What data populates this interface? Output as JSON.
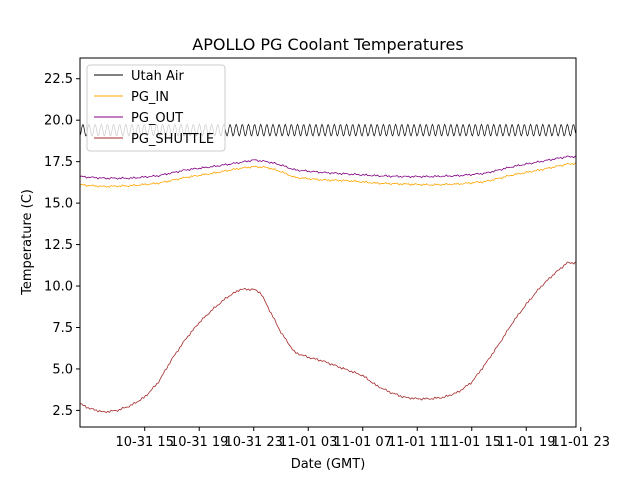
{
  "chart_data": {
    "type": "line",
    "title": "APOLLO PG Coolant Temperatures",
    "xlabel": "Date (GMT)",
    "ylabel": "Temperature (C)",
    "xlim": [
      10.25,
      46.65
    ],
    "ylim": [
      1.5,
      23.75
    ],
    "x_unit": "hours since 2023-10-31 00:00 GMT",
    "xticks": [
      {
        "value": 15,
        "label": "10-31 15"
      },
      {
        "value": 19,
        "label": "10-31 19"
      },
      {
        "value": 23,
        "label": "10-31 23"
      },
      {
        "value": 27,
        "label": "11-01 03"
      },
      {
        "value": 31,
        "label": "11-01 07"
      },
      {
        "value": 35,
        "label": "11-01 11"
      },
      {
        "value": 39,
        "label": "11-01 15"
      },
      {
        "value": 43,
        "label": "11-01 19"
      },
      {
        "value": 47,
        "label": "11-01 23"
      }
    ],
    "yticks": [
      {
        "value": 2.5,
        "label": "2.5"
      },
      {
        "value": 5.0,
        "label": "5.0"
      },
      {
        "value": 7.5,
        "label": "7.5"
      },
      {
        "value": 10.0,
        "label": "10.0"
      },
      {
        "value": 12.5,
        "label": "12.5"
      },
      {
        "value": 15.0,
        "label": "15.0"
      },
      {
        "value": 17.5,
        "label": "17.5"
      },
      {
        "value": 20.0,
        "label": "20.0"
      },
      {
        "value": 22.5,
        "label": "22.5"
      }
    ],
    "grid": false,
    "legend_position": "top-left",
    "series": [
      {
        "name": "Utah Air",
        "color": "#000000",
        "x": [
          10.25,
          12,
          14,
          16,
          18,
          20,
          22,
          24,
          26,
          28,
          30,
          32,
          34,
          36,
          38,
          40,
          42,
          44,
          46,
          46.65
        ],
        "y": [
          19.4,
          19.4,
          19.4,
          19.4,
          19.4,
          19.4,
          19.4,
          19.4,
          19.4,
          19.4,
          19.4,
          19.4,
          19.4,
          19.4,
          19.4,
          19.4,
          19.4,
          19.4,
          19.4,
          19.4
        ],
        "oscillation_amplitude": 0.35
      },
      {
        "name": "PG_IN",
        "color": "#ffa500",
        "x": [
          10.25,
          12,
          14,
          16,
          18,
          20,
          22,
          23,
          24,
          25,
          26,
          28,
          30,
          32,
          34,
          36,
          38,
          40,
          42,
          44,
          46,
          46.65
        ],
        "y": [
          16.1,
          16.0,
          16.05,
          16.2,
          16.55,
          16.8,
          17.1,
          17.2,
          17.15,
          16.9,
          16.55,
          16.4,
          16.35,
          16.2,
          16.15,
          16.1,
          16.15,
          16.3,
          16.7,
          17.0,
          17.35,
          17.4
        ]
      },
      {
        "name": "PG_OUT",
        "color": "#800080",
        "x": [
          10.25,
          12,
          14,
          16,
          18,
          20,
          22,
          23,
          24,
          25,
          26,
          28,
          30,
          32,
          34,
          36,
          38,
          40,
          42,
          44,
          46,
          46.65
        ],
        "y": [
          16.6,
          16.5,
          16.5,
          16.65,
          17.0,
          17.2,
          17.45,
          17.6,
          17.5,
          17.3,
          17.0,
          16.85,
          16.75,
          16.65,
          16.6,
          16.6,
          16.65,
          16.8,
          17.2,
          17.5,
          17.8,
          17.8
        ]
      },
      {
        "name": "PG_SHUTTLE",
        "color": "#a52a2a",
        "x": [
          10.25,
          11,
          12,
          13,
          14,
          15,
          16,
          17,
          18,
          19,
          20,
          21,
          22,
          23,
          23.5,
          24,
          25,
          26,
          27,
          28,
          29,
          30,
          31,
          32,
          33,
          34,
          35,
          36,
          37,
          38,
          39,
          40,
          41,
          42,
          43,
          44,
          45,
          46,
          46.65
        ],
        "y": [
          2.9,
          2.6,
          2.4,
          2.5,
          2.8,
          3.3,
          4.2,
          5.6,
          6.8,
          7.8,
          8.6,
          9.3,
          9.8,
          9.8,
          9.6,
          8.8,
          7.2,
          6.0,
          5.7,
          5.5,
          5.2,
          4.9,
          4.6,
          4.0,
          3.6,
          3.3,
          3.2,
          3.2,
          3.3,
          3.6,
          4.2,
          5.3,
          6.5,
          7.8,
          8.9,
          9.9,
          10.7,
          11.4,
          11.4
        ]
      }
    ]
  }
}
